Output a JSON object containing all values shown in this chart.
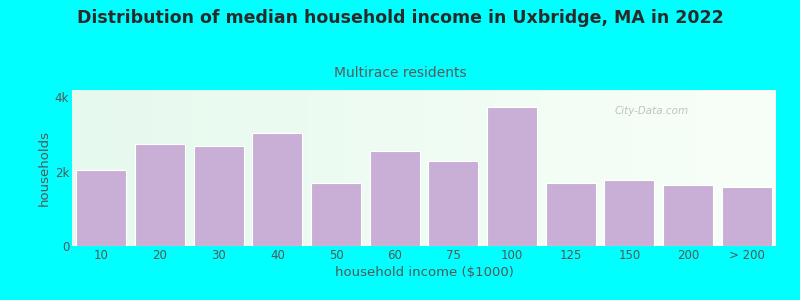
{
  "title": "Distribution of median household income in Uxbridge, MA in 2022",
  "subtitle": "Multirace residents",
  "xlabel": "household income ($1000)",
  "ylabel": "households",
  "bar_labels": [
    "10",
    "20",
    "30",
    "40",
    "50",
    "60",
    "75",
    "100",
    "125",
    "150",
    "200",
    "> 200"
  ],
  "bar_values": [
    2050,
    2750,
    2700,
    3050,
    1700,
    2550,
    2300,
    3750,
    1700,
    1780,
    1650,
    1600
  ],
  "bar_color": "#c9aed6",
  "bar_edge_color": "#ffffff",
  "background_color": "#00ffff",
  "plot_bg_color_top": "#e6f9ee",
  "plot_bg_color_bottom": "#f8fff8",
  "title_color": "#2a2a2a",
  "subtitle_color": "#5a5a5a",
  "axis_label_color": "#555555",
  "tick_color": "#555555",
  "ylim": [
    0,
    4200
  ],
  "yticks": [
    0,
    2000,
    4000
  ],
  "ytick_labels": [
    "0",
    "2k",
    "4k"
  ],
  "title_fontsize": 12.5,
  "subtitle_fontsize": 10,
  "label_fontsize": 8.5,
  "watermark_text": "City-Data.com",
  "watermark_color": "#aaaaaa"
}
